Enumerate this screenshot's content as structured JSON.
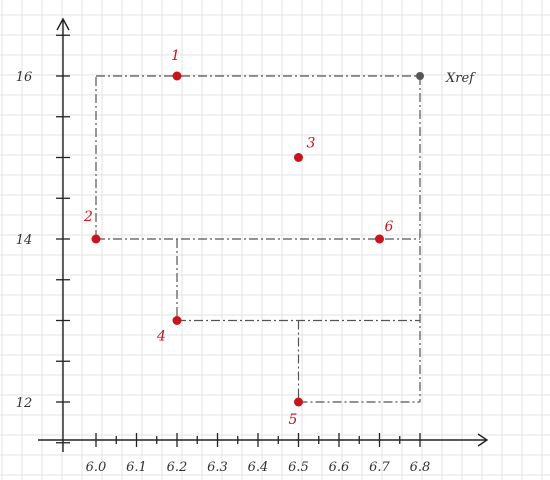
{
  "chart_data": {
    "type": "scatter",
    "x_ticks": [
      "6.0",
      "6.1",
      "6.2",
      "6.3",
      "6.4",
      "6.5",
      "6.6",
      "6.7",
      "6.8"
    ],
    "y_ticks": [
      "12",
      "14",
      "16"
    ],
    "xlim": [
      6.0,
      6.8
    ],
    "ylim": [
      12,
      16
    ],
    "grid": true,
    "points": [
      {
        "label": "1",
        "x": 6.2,
        "y": 16.0
      },
      {
        "label": "2",
        "x": 6.0,
        "y": 14.0
      },
      {
        "label": "3",
        "x": 6.5,
        "y": 15.0
      },
      {
        "label": "4",
        "x": 6.2,
        "y": 13.0
      },
      {
        "label": "5",
        "x": 6.5,
        "y": 12.0
      },
      {
        "label": "6",
        "x": 6.7,
        "y": 14.0
      }
    ],
    "reference_point": {
      "label": "Xref",
      "x": 6.8,
      "y": 16.0
    },
    "point_color": "#c8141c",
    "reference_color": "#555555"
  }
}
